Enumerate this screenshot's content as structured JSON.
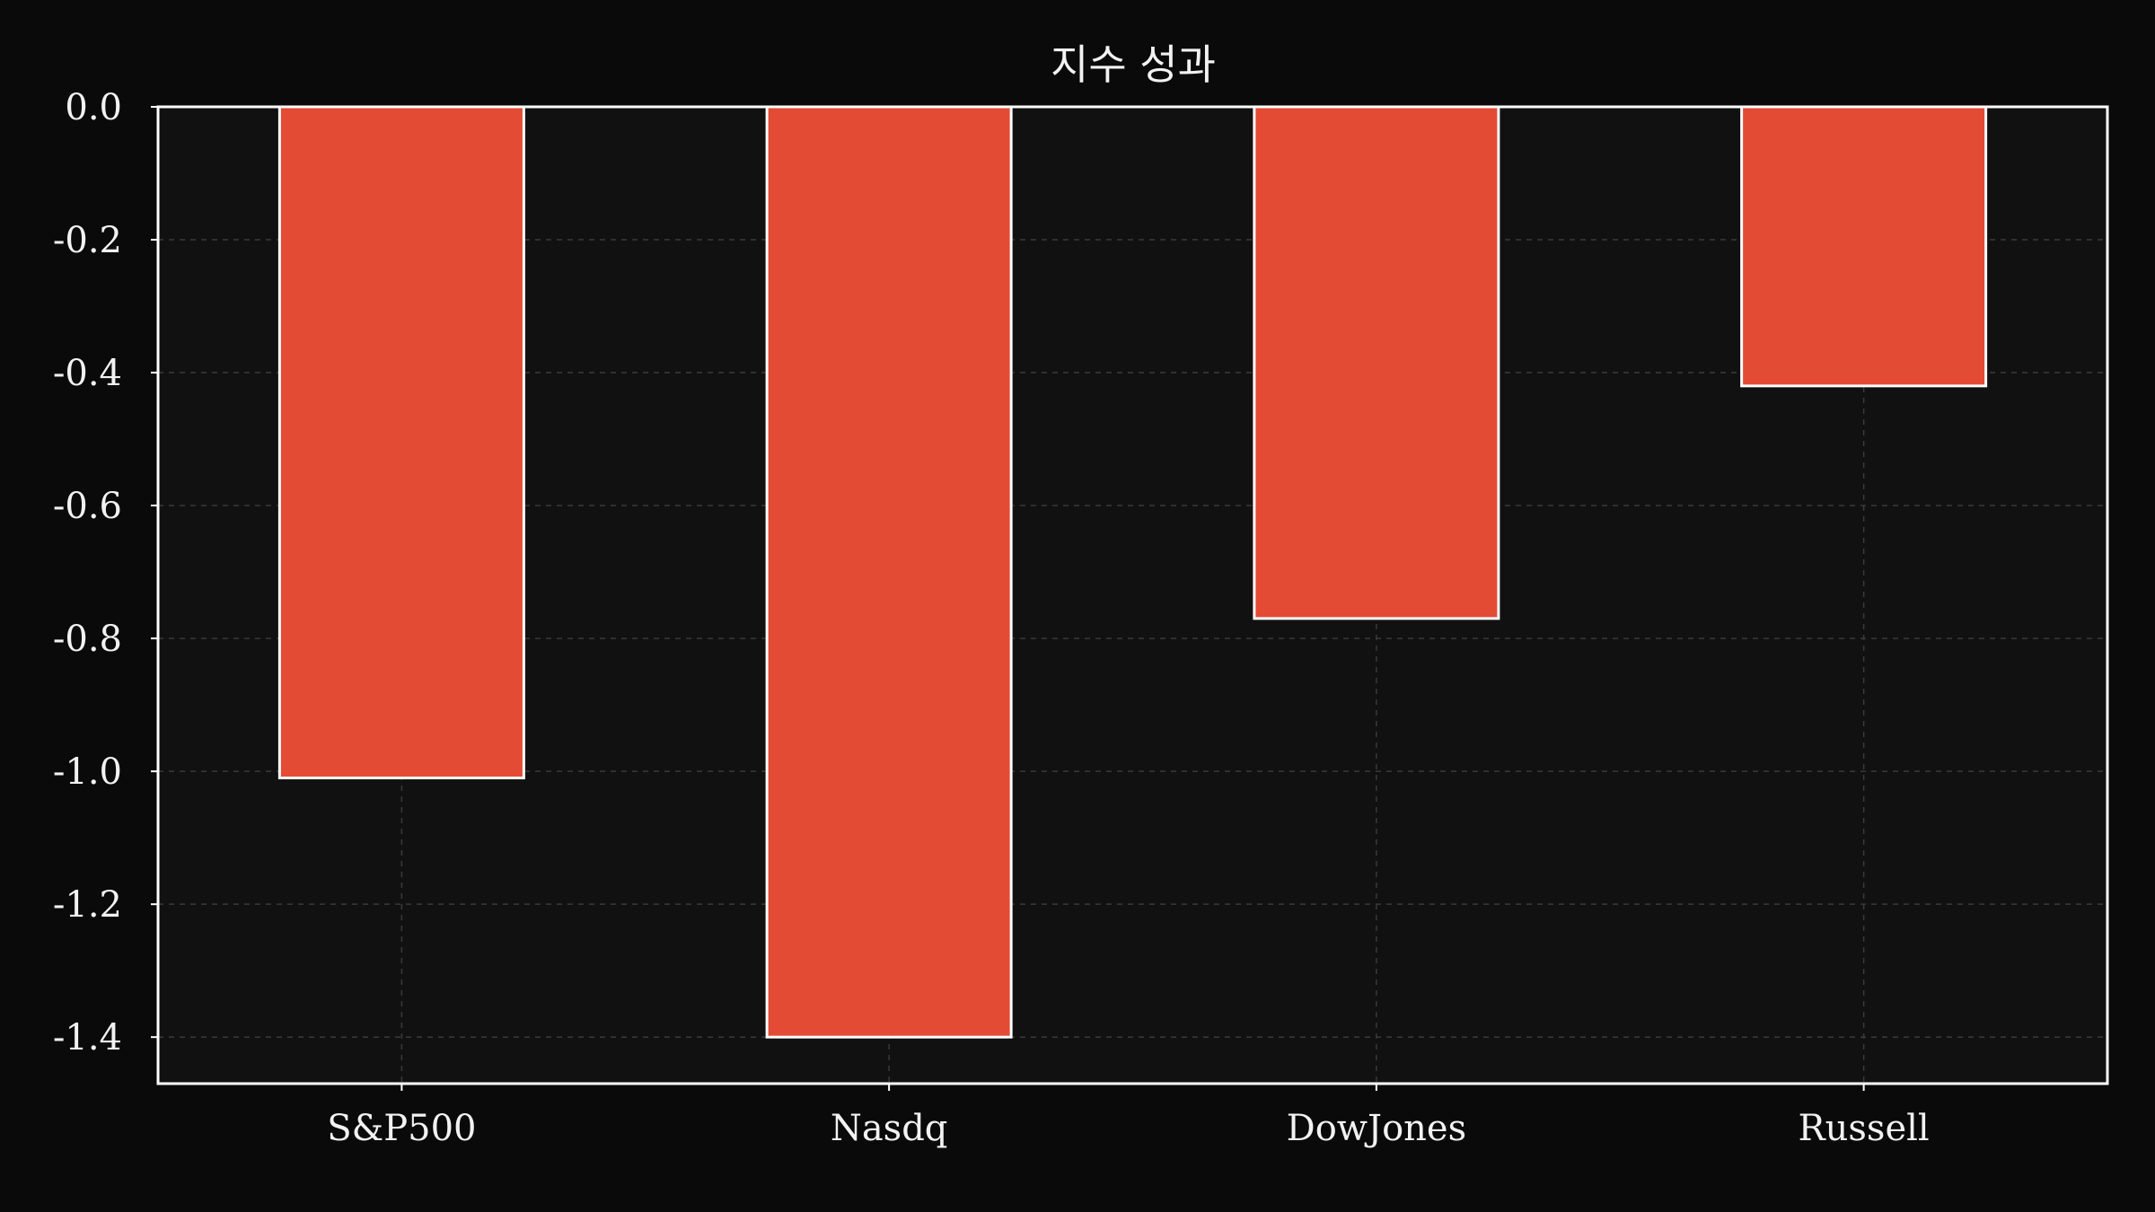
{
  "chart_data": {
    "type": "bar",
    "title": "지수 성과",
    "categories": [
      "S&P500",
      "Nasdq",
      "DowJones",
      "Russell"
    ],
    "values": [
      -1.01,
      -1.4,
      -0.77,
      -0.42
    ],
    "xlabel": "",
    "ylabel": "",
    "ylim": [
      -1.47,
      0.0
    ],
    "yticks": [
      0.0,
      -0.2,
      -0.4,
      -0.6,
      -0.8,
      -1.0,
      -1.2,
      -1.4
    ],
    "ytick_labels": [
      "0.0",
      "-0.2",
      "-0.4",
      "-0.6",
      "-0.8",
      "-1.0",
      "-1.2",
      "-1.4"
    ],
    "grid": true,
    "legend": "none",
    "colors": {
      "background": "#0a0a0a",
      "plot_background": "#111111",
      "bar_fill": "#e34b35",
      "bar_edge": "#ffffff",
      "axes": "#ffffff",
      "grid": "#3a3a3a",
      "text": "#f2f2f2"
    }
  }
}
